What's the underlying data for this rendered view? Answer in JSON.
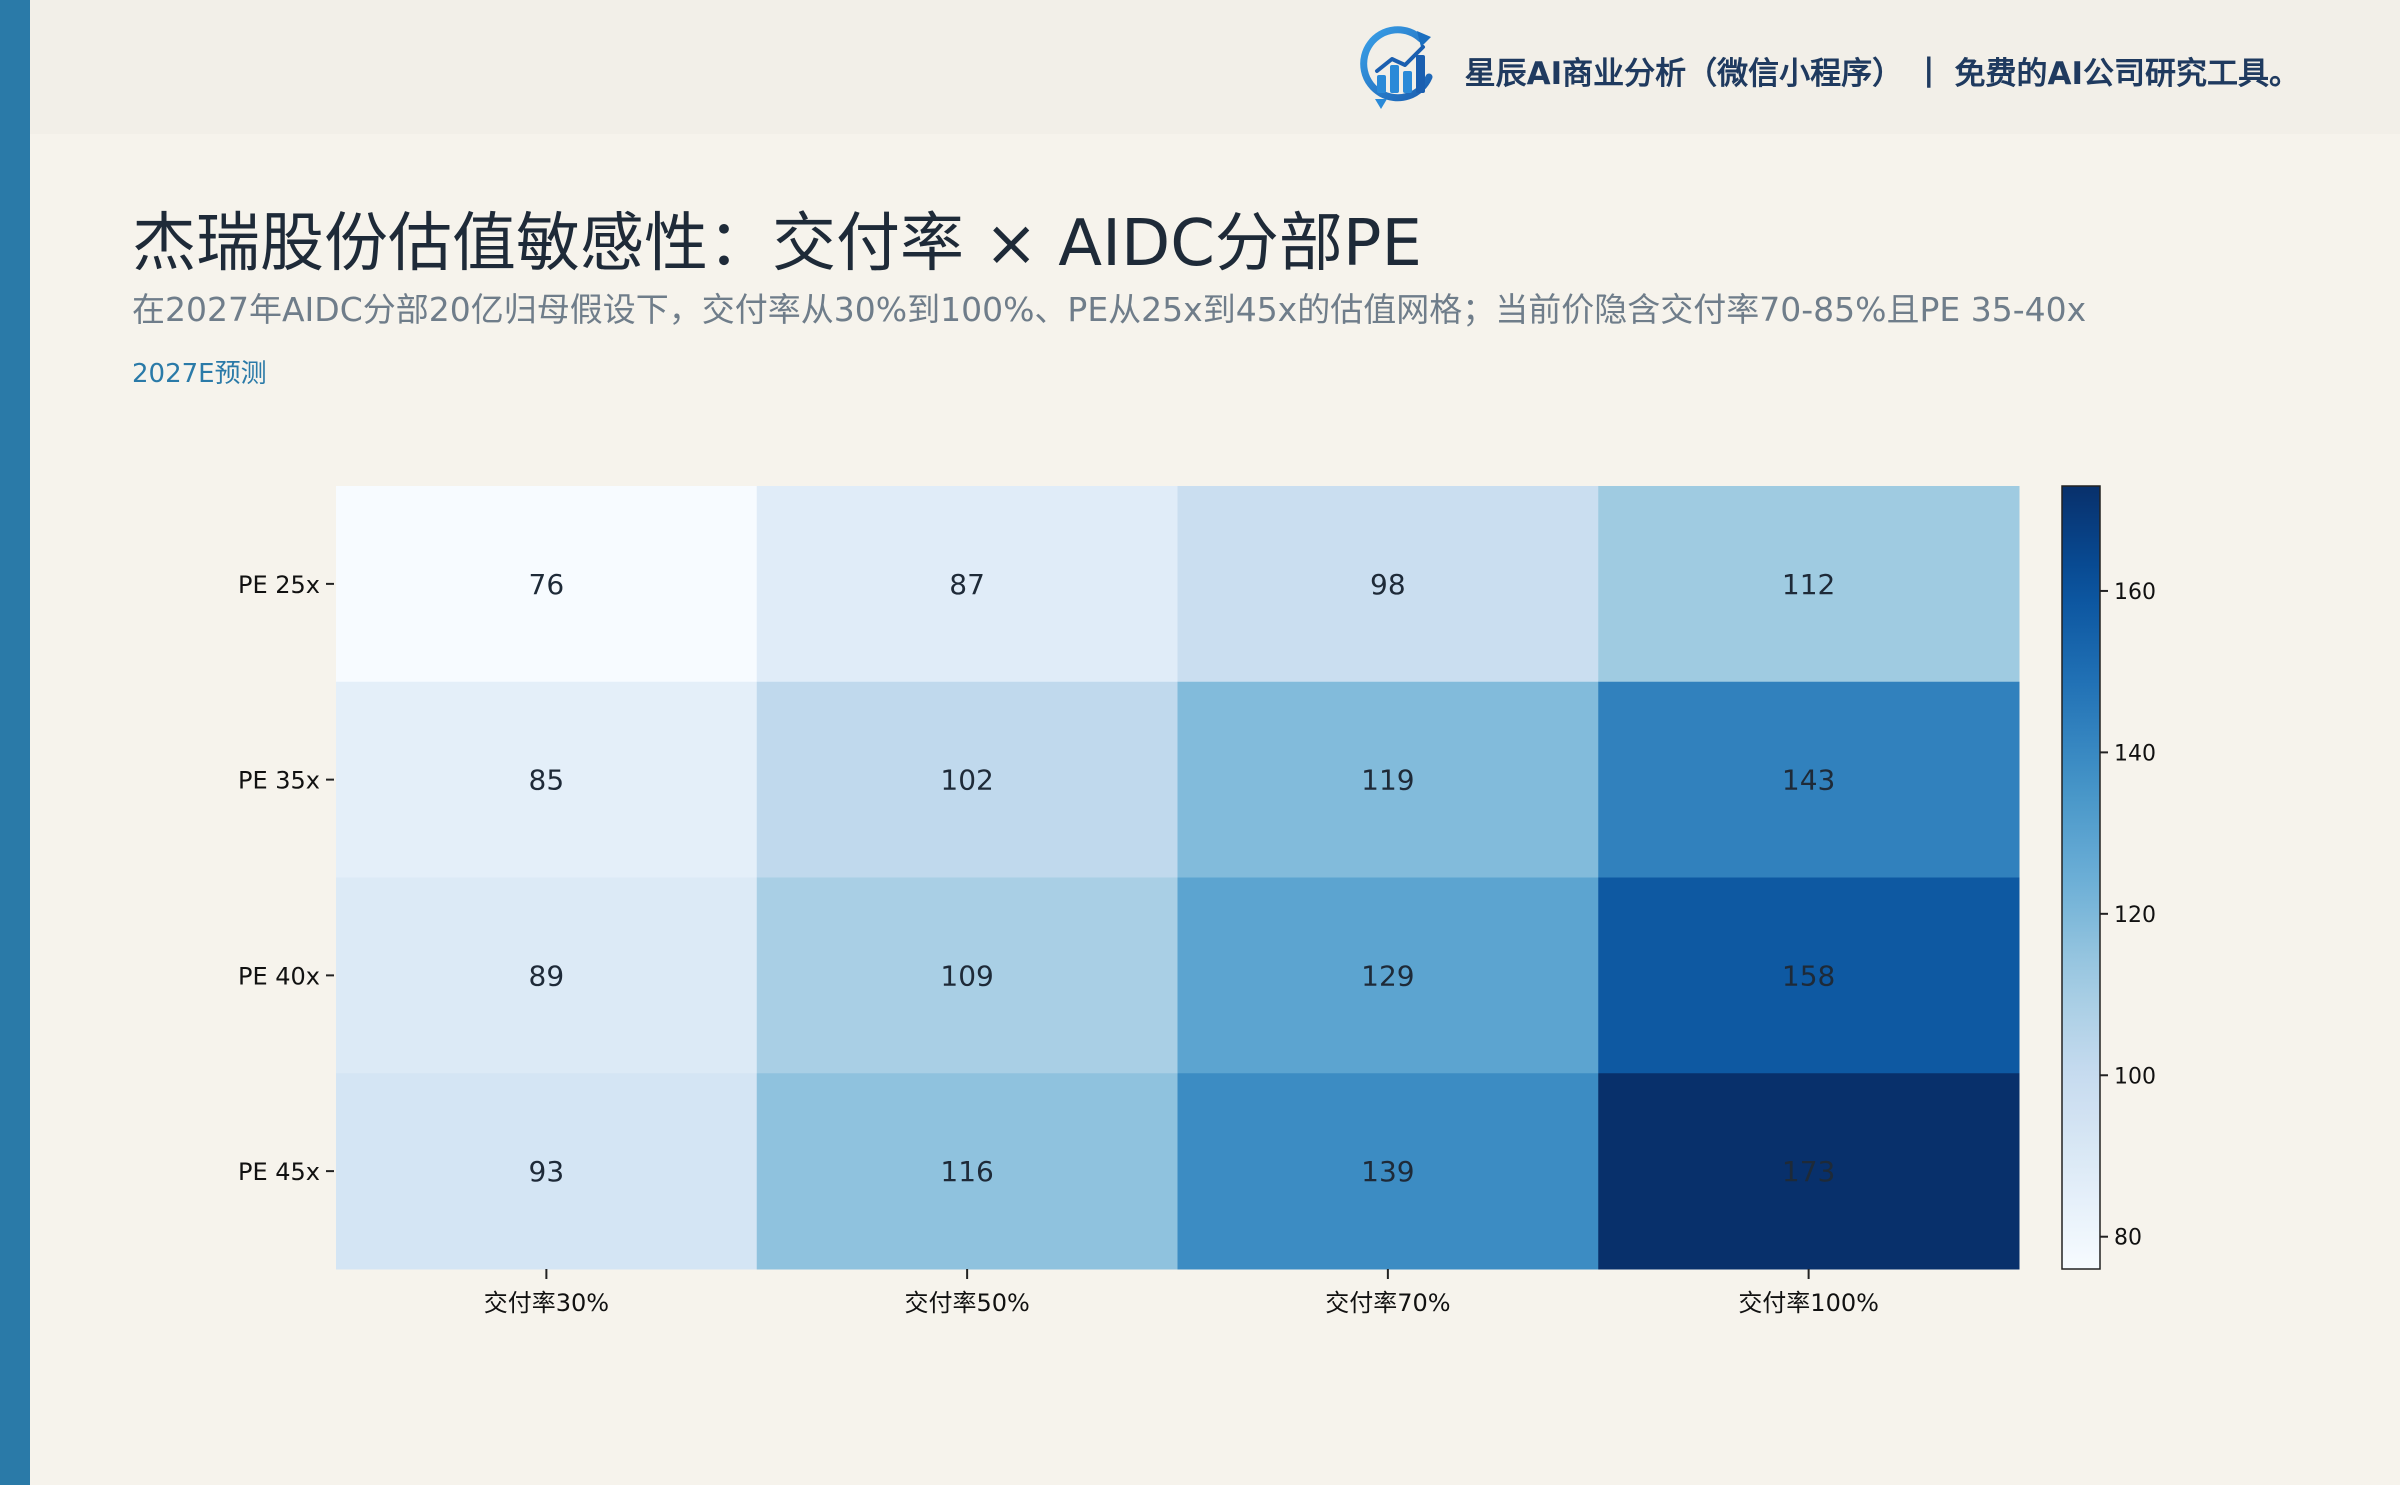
{
  "brand": {
    "logo": "bar-chart-growth-icon",
    "name": "星辰AI商业分析（微信小程序）",
    "separator": "|",
    "tagline": "免费的AI公司研究工具。"
  },
  "header": {
    "title": "杰瑞股份估值敏感性：交付率 × AIDC分部PE",
    "subtitle": "在2027年AIDC分部20亿归母假设下，交付率从30%到100%、PE从25x到45x的估值网格；当前价隐含交付率70-85%且PE 35-40x",
    "forecast_label": "2027E预测"
  },
  "colors": {
    "accent": "#2a7aa8",
    "background": "#f6f3ec",
    "cmap": "Blues"
  },
  "chart_data": {
    "type": "heatmap",
    "x_categories": [
      "交付率30%",
      "交付率50%",
      "交付率70%",
      "交付率100%"
    ],
    "y_categories": [
      "PE 25x",
      "PE 35x",
      "PE 40x",
      "PE 45x"
    ],
    "values": [
      [
        76,
        87,
        98,
        112
      ],
      [
        85,
        102,
        119,
        143
      ],
      [
        89,
        109,
        129,
        158
      ],
      [
        93,
        116,
        139,
        173
      ]
    ],
    "colorbar": {
      "min": 76,
      "max": 173,
      "ticks": [
        80,
        100,
        120,
        140,
        160
      ]
    }
  }
}
